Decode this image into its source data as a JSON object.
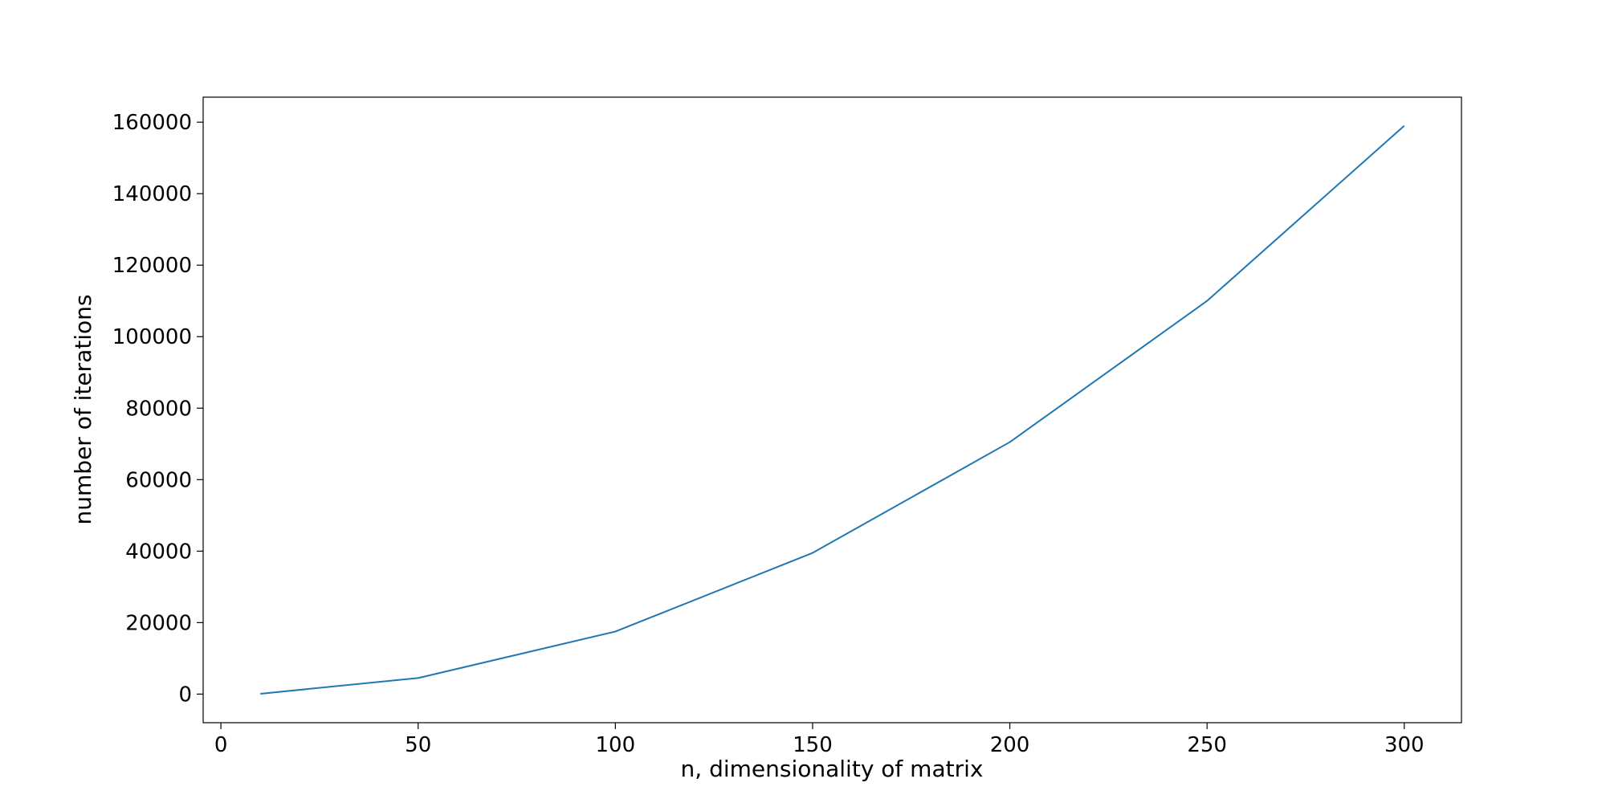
{
  "chart_data": {
    "type": "line",
    "title": "",
    "xlabel": "n, dimensionality of matrix",
    "ylabel": "number of iterations",
    "xlim": [
      -4.5,
      314.5
    ],
    "ylim": [
      -8000,
      167000
    ],
    "xticks": [
      0,
      50,
      100,
      150,
      200,
      250,
      300
    ],
    "yticks": [
      0,
      20000,
      40000,
      60000,
      80000,
      100000,
      120000,
      140000,
      160000
    ],
    "grid": false,
    "legend": "none",
    "series": [
      {
        "color": "#1f77b4",
        "x": [
          10,
          50,
          100,
          150,
          200,
          250,
          300
        ],
        "y": [
          100,
          4500,
          17500,
          39500,
          70500,
          110000,
          159000
        ]
      }
    ]
  }
}
